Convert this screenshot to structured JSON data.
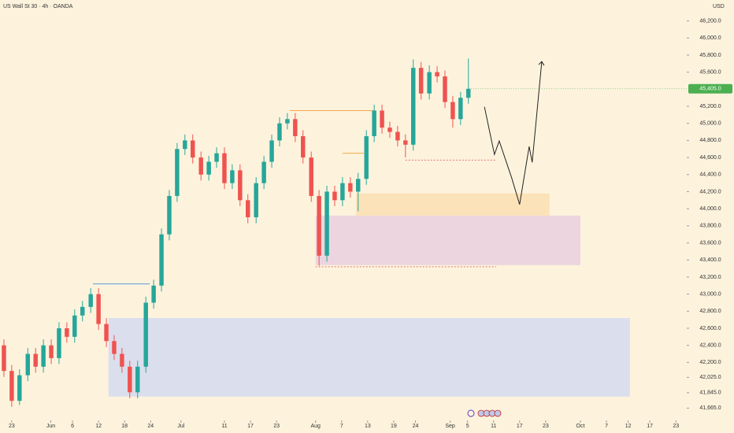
{
  "chart_data": {
    "type": "candlestick",
    "title": "US Wall St 30 · 4h · OANDA",
    "currency": "USD",
    "background": "#fdf3dd",
    "up_color": "#26a69a",
    "down_color": "#ef5350",
    "xlim": [
      -2.7,
      155.5
    ],
    "ylim": [
      41650,
      46445
    ],
    "xticks": [
      {
        "value": 0,
        "label": "23"
      },
      {
        "value": 9,
        "label": "Jun"
      },
      {
        "value": 14,
        "label": "6"
      },
      {
        "value": 20,
        "label": "12"
      },
      {
        "value": 26,
        "label": "18"
      },
      {
        "value": 32,
        "label": "24"
      },
      {
        "value": 39,
        "label": "Jul"
      },
      {
        "value": 49,
        "label": "11"
      },
      {
        "value": 55,
        "label": "17"
      },
      {
        "value": 61,
        "label": "23"
      },
      {
        "value": 70,
        "label": "Aug"
      },
      {
        "value": 76,
        "label": "7"
      },
      {
        "value": 82,
        "label": "13"
      },
      {
        "value": 88,
        "label": "19"
      },
      {
        "value": 93,
        "label": "24"
      },
      {
        "value": 101,
        "label": "Sep"
      },
      {
        "value": 105,
        "label": "5"
      },
      {
        "value": 111,
        "label": "11"
      },
      {
        "value": 117,
        "label": "17"
      },
      {
        "value": 123,
        "label": "23"
      },
      {
        "value": 131,
        "label": "Oct"
      },
      {
        "value": 137,
        "label": "7"
      },
      {
        "value": 142,
        "label": "12"
      },
      {
        "value": 147,
        "label": "17"
      },
      {
        "value": 153,
        "label": "23"
      }
    ],
    "yticks": [
      {
        "value": 46200,
        "label": "46,200.0"
      },
      {
        "value": 46000,
        "label": "46,000.0"
      },
      {
        "value": 45800,
        "label": "45,800.0"
      },
      {
        "value": 45600,
        "label": "45,600.0"
      },
      {
        "value": 45200,
        "label": "45,200.0"
      },
      {
        "value": 45000,
        "label": "45,000.0"
      },
      {
        "value": 44800,
        "label": "44,800.0"
      },
      {
        "value": 44600,
        "label": "44,600.0"
      },
      {
        "value": 44400,
        "label": "44,400.0"
      },
      {
        "value": 44200,
        "label": "44,200.0"
      },
      {
        "value": 44000,
        "label": "44,000.0"
      },
      {
        "value": 43800,
        "label": "43,800.0"
      },
      {
        "value": 43600,
        "label": "43,600.0"
      },
      {
        "value": 43400,
        "label": "43,400.0"
      },
      {
        "value": 43200,
        "label": "43,200.0"
      },
      {
        "value": 43000,
        "label": "43,000.0"
      },
      {
        "value": 42800,
        "label": "42,800.0"
      },
      {
        "value": 42600,
        "label": "42,600.0"
      },
      {
        "value": 42400,
        "label": "42,400.0"
      },
      {
        "value": 42200,
        "label": "42,200.0"
      },
      {
        "value": 42025,
        "label": "42,025.0"
      },
      {
        "value": 41845,
        "label": "41,845.0"
      },
      {
        "value": 41665,
        "label": "41,665.0"
      }
    ],
    "last_price": {
      "value": 45405,
      "label": "45,405.0",
      "color": "#4caf50"
    },
    "series": [
      {
        "x": [
          -1.8,
          0.0,
          1.8,
          3.7,
          5.5,
          7.3,
          9.1,
          10.9,
          12.7,
          14.5,
          16.3,
          18.2,
          20.0,
          21.8,
          23.6,
          25.4,
          27.2,
          29.0,
          30.9,
          32.7,
          34.5,
          36.3,
          38.1,
          39.9,
          41.7,
          43.6,
          45.4,
          47.2,
          49.0,
          50.8,
          52.6,
          54.4,
          56.3,
          58.1,
          59.9,
          61.7,
          63.5,
          65.3,
          67.1,
          69.0,
          70.8,
          72.6,
          74.4,
          76.2,
          78.0,
          79.8,
          81.7,
          83.5,
          85.3,
          87.1,
          88.9,
          90.7,
          92.5,
          94.3,
          96.2,
          98.0,
          99.8,
          101.6,
          103.4,
          105.2
        ],
        "ohlc": [
          [
            42400,
            42470,
            42030,
            42100
          ],
          [
            42100,
            42170,
            41680,
            41750
          ],
          [
            41750,
            42120,
            41700,
            42050
          ],
          [
            42050,
            42370,
            41980,
            42300
          ],
          [
            42300,
            42370,
            42080,
            42150
          ],
          [
            42150,
            42470,
            42080,
            42400
          ],
          [
            42400,
            42470,
            42180,
            42250
          ],
          [
            42250,
            42670,
            42180,
            42600
          ],
          [
            42600,
            42670,
            42430,
            42500
          ],
          [
            42500,
            42820,
            42430,
            42750
          ],
          [
            42750,
            42920,
            42680,
            42850
          ],
          [
            42850,
            43070,
            42780,
            43000
          ],
          [
            43000,
            43070,
            42580,
            42650
          ],
          [
            42650,
            42720,
            42380,
            42450
          ],
          [
            42450,
            42520,
            42230,
            42300
          ],
          [
            42300,
            42370,
            42080,
            42150
          ],
          [
            42150,
            42220,
            41780,
            41850
          ],
          [
            41850,
            42220,
            41780,
            42150
          ],
          [
            42150,
            42970,
            42080,
            42900
          ],
          [
            42900,
            43170,
            42830,
            43100
          ],
          [
            43100,
            43770,
            43030,
            43700
          ],
          [
            43700,
            44220,
            43630,
            44150
          ],
          [
            44150,
            44770,
            44080,
            44700
          ],
          [
            44700,
            44870,
            44630,
            44800
          ],
          [
            44800,
            44870,
            44530,
            44600
          ],
          [
            44600,
            44670,
            44330,
            44400
          ],
          [
            44400,
            44620,
            44330,
            44550
          ],
          [
            44550,
            44720,
            44480,
            44650
          ],
          [
            44650,
            44720,
            44230,
            44300
          ],
          [
            44300,
            44520,
            44230,
            44450
          ],
          [
            44450,
            44520,
            44030,
            44100
          ],
          [
            44100,
            44170,
            43830,
            43900
          ],
          [
            43900,
            44370,
            43830,
            44300
          ],
          [
            44300,
            44620,
            44230,
            44550
          ],
          [
            44550,
            44870,
            44480,
            44800
          ],
          [
            44800,
            45070,
            44730,
            45000
          ],
          [
            45000,
            45120,
            44930,
            45050
          ],
          [
            45050,
            45120,
            44780,
            44850
          ],
          [
            44850,
            44920,
            44530,
            44600
          ],
          [
            44600,
            44670,
            44080,
            44150
          ],
          [
            44150,
            44220,
            43330,
            43450
          ],
          [
            43450,
            44270,
            43380,
            44200
          ],
          [
            44200,
            44270,
            44030,
            44100
          ],
          [
            44100,
            44370,
            44030,
            44300
          ],
          [
            44300,
            44370,
            44130,
            44200
          ],
          [
            44200,
            44420,
            43970,
            44350
          ],
          [
            44350,
            44920,
            44280,
            44850
          ],
          [
            44850,
            45220,
            44780,
            45150
          ],
          [
            45150,
            45220,
            44880,
            44950
          ],
          [
            44950,
            45020,
            44830,
            44900
          ],
          [
            44900,
            44970,
            44730,
            44800
          ],
          [
            44800,
            44870,
            44600,
            44750
          ],
          [
            44750,
            45750,
            44680,
            45650
          ],
          [
            45650,
            45720,
            45280,
            45350
          ],
          [
            45350,
            45680,
            45280,
            45600
          ],
          [
            45600,
            45670,
            45480,
            45550
          ],
          [
            45550,
            45620,
            45180,
            45250
          ],
          [
            45250,
            45320,
            44950,
            45050
          ],
          [
            45050,
            45370,
            44980,
            45300
          ],
          [
            45300,
            45760,
            45230,
            45405
          ]
        ]
      }
    ],
    "zones": [
      {
        "x": [
          22.3,
          142.4
        ],
        "y": [
          41800,
          42720
        ],
        "color": "#d7dcee"
      },
      {
        "x": [
          70.0,
          131.0
        ],
        "y": [
          43340,
          43920
        ],
        "color": "#ead2de"
      },
      {
        "x": [
          79.3,
          123.9
        ],
        "y": [
          43920,
          44180
        ],
        "color": "#fbe0b4"
      }
    ],
    "levels": [
      {
        "x": [
          18.7,
          31.8
        ],
        "y": 43120,
        "color": "#5b9bd5",
        "dash": false
      },
      {
        "x": [
          64.1,
          83.5
        ],
        "y": 45150,
        "color": "#f5a94a",
        "dash": false
      },
      {
        "x": [
          76.2,
          81.1
        ],
        "y": 44650,
        "color": "#f5a94a",
        "dash": false
      },
      {
        "x": [
          90.7,
          111.6
        ],
        "y": 44570,
        "color": "#e57373",
        "dash": true
      },
      {
        "x": [
          70.0,
          111.6
        ],
        "y": 43320,
        "color": "#e57373",
        "dash": true
      }
    ],
    "projection": {
      "x": [
        108.9,
        111.2,
        112.3,
        115.2,
        117.0,
        119.2,
        119.9,
        122.1
      ],
      "y": [
        45194,
        44636,
        44794,
        44357,
        44050,
        44729,
        44543,
        45724
      ],
      "color": "#222222"
    }
  }
}
